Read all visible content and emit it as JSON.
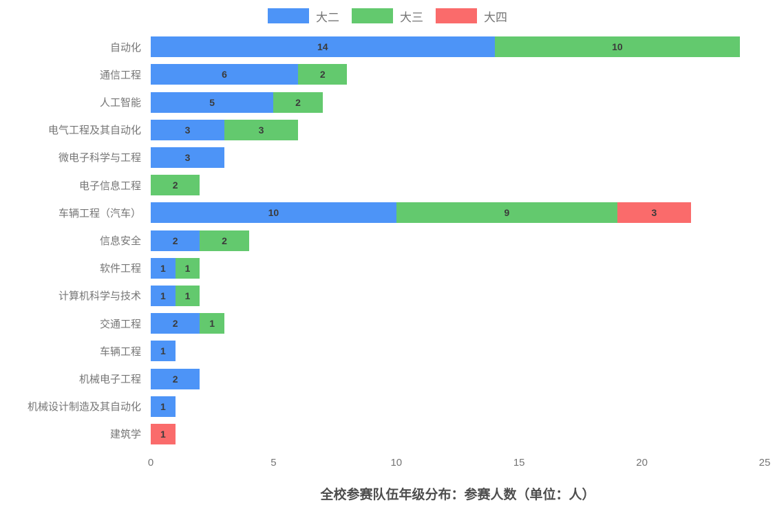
{
  "chart_data": {
    "type": "bar",
    "orientation": "horizontal",
    "stacked": true,
    "title": "全校参赛队伍年级分布：参赛人数（单位：人）",
    "categories": [
      "自动化",
      "通信工程",
      "人工智能",
      "电气工程及其自动化",
      "微电子科学与工程",
      "电子信息工程",
      "车辆工程（汽车）",
      "信息安全",
      "软件工程",
      "计算机科学与技术",
      "交通工程",
      "车辆工程",
      "机械电子工程",
      "机械设计制造及其自动化",
      "建筑学"
    ],
    "series": [
      {
        "name": "大二",
        "color": "#4d94f7",
        "values": [
          14,
          6,
          5,
          3,
          3,
          0,
          10,
          2,
          1,
          1,
          2,
          1,
          2,
          1,
          0
        ]
      },
      {
        "name": "大三",
        "color": "#63c96e",
        "values": [
          10,
          2,
          2,
          3,
          0,
          2,
          9,
          2,
          1,
          1,
          1,
          0,
          0,
          0,
          0
        ]
      },
      {
        "name": "大四",
        "color": "#fa6b6b",
        "values": [
          0,
          0,
          0,
          0,
          0,
          0,
          3,
          0,
          0,
          0,
          0,
          0,
          0,
          0,
          1
        ]
      }
    ],
    "xlim": [
      0,
      25
    ],
    "x_ticks": [
      0,
      5,
      10,
      15,
      20,
      25
    ],
    "legend_position": "top",
    "grid": false,
    "value_labels_shown": true,
    "text_colors": {
      "category_label": "#757575",
      "value_label": "#3b3b3b",
      "tick_label": "#757575",
      "title": "#4d4d4d"
    }
  }
}
